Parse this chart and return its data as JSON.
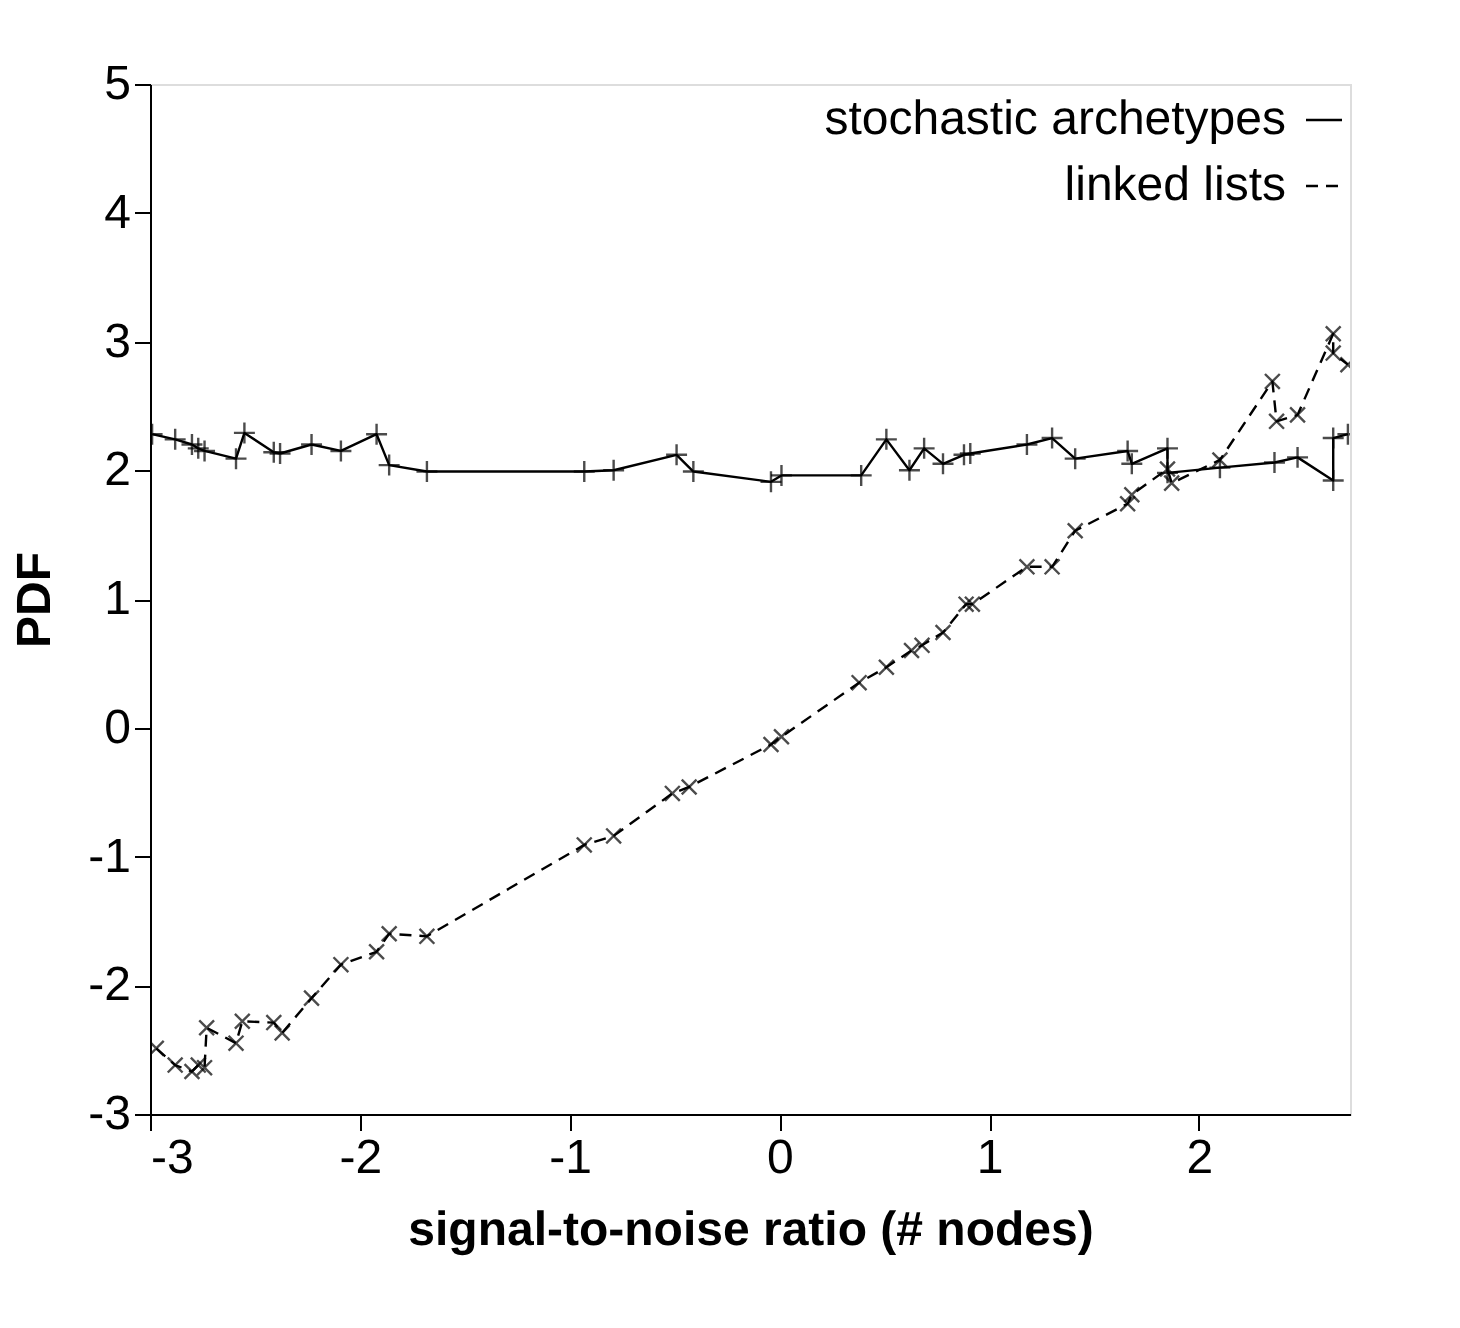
{
  "chart_data": {
    "type": "line",
    "xlabel": "signal-to-noise ratio (# nodes)",
    "ylabel": "PDF",
    "xlim": [
      -3,
      2.72
    ],
    "xticks": [
      -3,
      -2,
      -1,
      0,
      1,
      2
    ],
    "ylim": [
      -3,
      5
    ],
    "yticks": [
      -3,
      -2,
      -1,
      0,
      1,
      2,
      3,
      4,
      5
    ],
    "grid": false,
    "legend": "top right",
    "series": [
      {
        "name": "stochastic archetypes",
        "color": "#000000",
        "marker": "cross",
        "line_style": "solid",
        "x": [
          -2.99,
          -2.88,
          -2.8,
          -2.77,
          -2.74,
          -2.59,
          -2.55,
          -2.41,
          -2.38,
          -2.23,
          -2.09,
          -1.92,
          -1.86,
          -1.68,
          -0.93,
          -0.79,
          -0.49,
          -0.41,
          -0.04,
          0.01,
          0.39,
          0.51,
          0.62,
          0.69,
          0.78,
          0.88,
          0.91,
          1.18,
          1.3,
          1.41,
          1.66,
          1.68,
          1.85,
          1.85,
          2.1,
          2.36,
          2.47,
          2.64,
          2.64,
          2.71
        ],
        "values": [
          2.28,
          2.24,
          2.2,
          2.17,
          2.15,
          2.09,
          2.29,
          2.14,
          2.13,
          2.2,
          2.15,
          2.28,
          2.04,
          1.99,
          1.99,
          2.0,
          2.12,
          1.99,
          1.91,
          1.96,
          1.96,
          2.24,
          2.0,
          2.17,
          2.05,
          2.12,
          2.13,
          2.2,
          2.25,
          2.09,
          2.15,
          2.05,
          2.17,
          1.98,
          2.02,
          2.06,
          2.1,
          1.92,
          2.25,
          2.28
        ]
      },
      {
        "name": "linked lists",
        "color": "#000000",
        "marker": "cross",
        "line_style": "dashed",
        "x": [
          -2.97,
          -2.88,
          -2.8,
          -2.77,
          -2.74,
          -2.73,
          -2.59,
          -2.56,
          -2.41,
          -2.37,
          -2.23,
          -2.09,
          -1.92,
          -1.86,
          -1.68,
          -0.93,
          -0.79,
          -0.51,
          -0.43,
          -0.04,
          0.01,
          0.38,
          0.51,
          0.63,
          0.68,
          0.78,
          0.89,
          0.92,
          1.18,
          1.3,
          1.41,
          1.66,
          1.68,
          1.85,
          1.87,
          2.1,
          2.35,
          2.37,
          2.47,
          2.64,
          2.64,
          2.71
        ],
        "values": [
          -2.49,
          -2.62,
          -2.67,
          -2.62,
          -2.64,
          -2.33,
          -2.45,
          -2.28,
          -2.29,
          -2.37,
          -2.1,
          -1.84,
          -1.74,
          -1.6,
          -1.62,
          -0.91,
          -0.84,
          -0.51,
          -0.46,
          -0.13,
          -0.07,
          0.35,
          0.47,
          0.6,
          0.64,
          0.74,
          0.96,
          0.96,
          1.25,
          1.25,
          1.53,
          1.74,
          1.81,
          2.01,
          1.9,
          2.08,
          2.69,
          2.38,
          2.43,
          3.06,
          2.91,
          2.82
        ]
      }
    ]
  }
}
